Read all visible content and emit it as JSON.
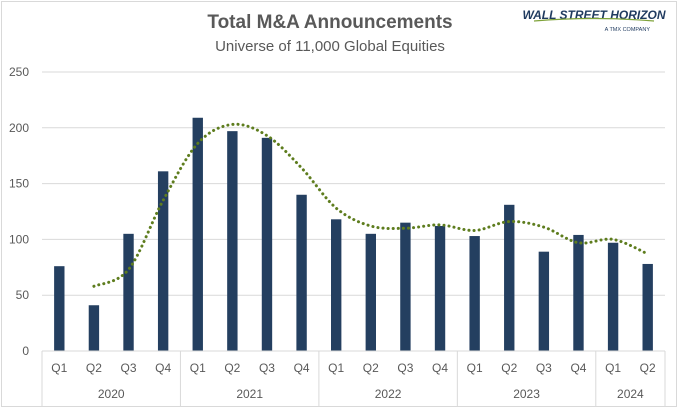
{
  "chart_data": {
    "type": "bar",
    "title": "Total M&A Announcements",
    "subtitle": "Universe of 11,000 Global Equities",
    "categories": [
      "Q1",
      "Q2",
      "Q3",
      "Q4",
      "Q1",
      "Q2",
      "Q3",
      "Q4",
      "Q1",
      "Q2",
      "Q3",
      "Q4",
      "Q1",
      "Q2",
      "Q3",
      "Q4",
      "Q1",
      "Q2"
    ],
    "groups": [
      {
        "label": "2020",
        "count": 4
      },
      {
        "label": "2021",
        "count": 4
      },
      {
        "label": "2022",
        "count": 4
      },
      {
        "label": "2023",
        "count": 4
      },
      {
        "label": "2024",
        "count": 2
      }
    ],
    "series": [
      {
        "name": "M&A Announcements",
        "type": "bar",
        "color": "#243f60",
        "values": [
          76,
          41,
          105,
          161,
          209,
          197,
          191,
          140,
          118,
          105,
          115,
          112,
          103,
          131,
          89,
          104,
          97,
          78
        ]
      },
      {
        "name": "Trend",
        "type": "line",
        "style": "dotted",
        "color": "#5e7d1e",
        "values": [
          null,
          58,
          73,
          135,
          186,
          203,
          193,
          164,
          128,
          112,
          110,
          113,
          108,
          116,
          111,
          97,
          100,
          87
        ]
      }
    ],
    "ylim": [
      0,
      250
    ],
    "yticks": [
      0,
      50,
      100,
      150,
      200,
      250
    ],
    "grid": true,
    "xlabel": "",
    "ylabel": ""
  },
  "logo": {
    "name": "WALL STREET HORIZON",
    "sub": "A TMX COMPANY"
  },
  "colors": {
    "bar": "#243f60",
    "trend": "#5e7d1e",
    "grid": "#d9d9d9",
    "text": "#595959"
  }
}
